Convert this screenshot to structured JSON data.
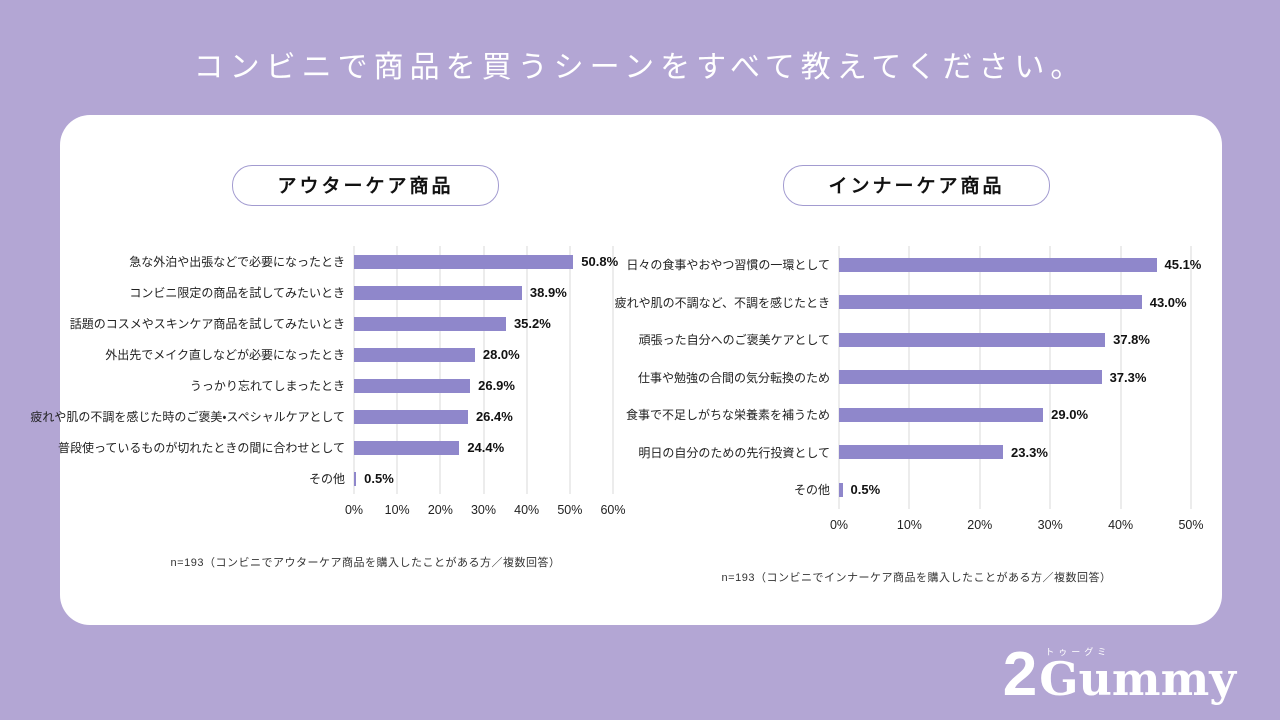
{
  "page": {
    "title": "コンビニで商品を買うシーンをすべて教えてください。"
  },
  "colors": {
    "background": "#b3a6d4",
    "bar": "#8f87cb",
    "card": "#ffffff",
    "pill_border": "#a29bd0",
    "gridline": "#d9d9d9"
  },
  "logo": {
    "number": "2",
    "kana": "トゥーグミ",
    "name": "Gummy"
  },
  "chart_data": [
    {
      "type": "bar",
      "orientation": "horizontal",
      "title": "アウターケア商品",
      "categories": [
        "急な外泊や出張などで必要になったとき",
        "コンビニ限定の商品を試してみたいとき",
        "話題のコスメやスキンケア商品を試してみたいとき",
        "外出先でメイク直しなどが必要になったとき",
        "うっかり忘れてしまったとき",
        "疲れや肌の不調を感じた時のご褒美・スペシャルケアとして",
        "普段使っているものが切れたときの間に合わせとして",
        "その他"
      ],
      "values": [
        50.8,
        38.9,
        35.2,
        28.0,
        26.9,
        26.4,
        24.4,
        0.5
      ],
      "xlim": [
        0,
        60
      ],
      "ticks": [
        "0%",
        "10%",
        "20%",
        "30%",
        "40%",
        "50%",
        "60%"
      ],
      "grid": true,
      "legend": false,
      "footnote": "n=193（コンビニでアウターケア商品を購入したことがある方／複数回答）"
    },
    {
      "type": "bar",
      "orientation": "horizontal",
      "title": "インナーケア商品",
      "categories": [
        "日々の食事やおやつ習慣の一環として",
        "疲れや肌の不調など、不調を感じたとき",
        "頑張った自分へのご褒美ケアとして",
        "仕事や勉強の合間の気分転換のため",
        "食事で不足しがちな栄養素を補うため",
        "明日の自分のための先行投資として",
        "その他"
      ],
      "values": [
        45.1,
        43.0,
        37.8,
        37.3,
        29.0,
        23.3,
        0.5
      ],
      "xlim": [
        0,
        50
      ],
      "ticks": [
        "0%",
        "10%",
        "20%",
        "30%",
        "40%",
        "50%"
      ],
      "grid": true,
      "legend": false,
      "footnote": "n=193（コンビニでインナーケア商品を購入したことがある方／複数回答）"
    }
  ]
}
